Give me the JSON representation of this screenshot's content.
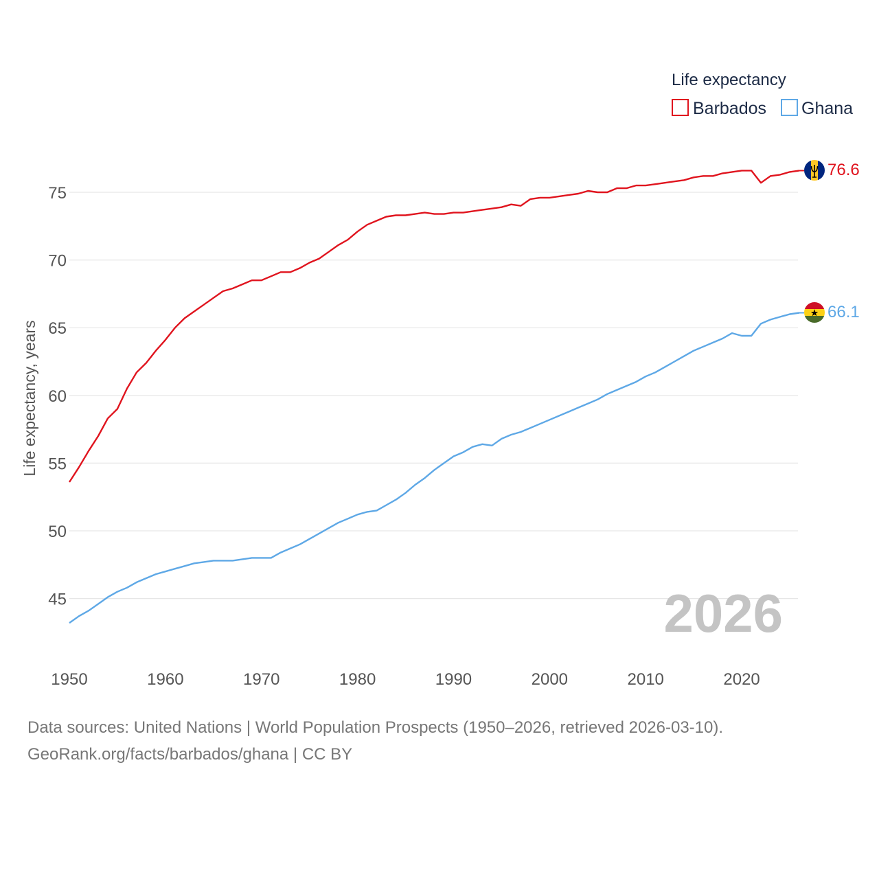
{
  "chart_data": {
    "type": "line",
    "title": "Life expectancy",
    "xlabel": "",
    "ylabel": "Life expectancy, years",
    "xlim": [
      1950,
      2026
    ],
    "ylim": [
      42,
      79
    ],
    "x_ticks": [
      1950,
      1960,
      1970,
      1980,
      1990,
      2000,
      2010,
      2020
    ],
    "y_ticks": [
      45,
      50,
      55,
      60,
      65,
      70,
      75
    ],
    "grid": true,
    "legend_position": "top-right",
    "current_year": "2026",
    "x": [
      1950,
      1951,
      1952,
      1953,
      1954,
      1955,
      1956,
      1957,
      1958,
      1959,
      1960,
      1961,
      1962,
      1963,
      1964,
      1965,
      1966,
      1967,
      1968,
      1969,
      1970,
      1971,
      1972,
      1973,
      1974,
      1975,
      1976,
      1977,
      1978,
      1979,
      1980,
      1981,
      1982,
      1983,
      1984,
      1985,
      1986,
      1987,
      1988,
      1989,
      1990,
      1991,
      1992,
      1993,
      1994,
      1995,
      1996,
      1997,
      1998,
      1999,
      2000,
      2001,
      2002,
      2003,
      2004,
      2005,
      2006,
      2007,
      2008,
      2009,
      2010,
      2011,
      2012,
      2013,
      2014,
      2015,
      2016,
      2017,
      2018,
      2019,
      2020,
      2021,
      2022,
      2023,
      2024,
      2025,
      2026
    ],
    "series": [
      {
        "name": "Barbados",
        "color": "#e0141e",
        "end_label": "76.6",
        "flag": "barbados-flag",
        "values": [
          53.6,
          54.7,
          55.9,
          57.0,
          58.3,
          59.0,
          60.5,
          61.7,
          62.4,
          63.3,
          64.1,
          65.0,
          65.7,
          66.2,
          66.7,
          67.2,
          67.7,
          67.9,
          68.2,
          68.5,
          68.5,
          68.8,
          69.1,
          69.1,
          69.4,
          69.8,
          70.1,
          70.6,
          71.1,
          71.5,
          72.1,
          72.6,
          72.9,
          73.2,
          73.3,
          73.3,
          73.4,
          73.5,
          73.4,
          73.4,
          73.5,
          73.5,
          73.6,
          73.7,
          73.8,
          73.9,
          74.1,
          74.0,
          74.5,
          74.6,
          74.6,
          74.7,
          74.8,
          74.9,
          75.1,
          75.0,
          75.0,
          75.3,
          75.3,
          75.5,
          75.5,
          75.6,
          75.7,
          75.8,
          75.9,
          76.1,
          76.2,
          76.2,
          76.4,
          76.5,
          76.6,
          76.6,
          75.7,
          76.2,
          76.3,
          76.5,
          76.6
        ]
      },
      {
        "name": "Ghana",
        "color": "#5ea8e6",
        "end_label": "66.1",
        "flag": "ghana-flag",
        "values": [
          43.2,
          43.7,
          44.1,
          44.6,
          45.1,
          45.5,
          45.8,
          46.2,
          46.5,
          46.8,
          47.0,
          47.2,
          47.4,
          47.6,
          47.7,
          47.8,
          47.8,
          47.8,
          47.9,
          48.0,
          48.0,
          48.0,
          48.4,
          48.7,
          49.0,
          49.4,
          49.8,
          50.2,
          50.6,
          50.9,
          51.2,
          51.4,
          51.5,
          51.9,
          52.3,
          52.8,
          53.4,
          53.9,
          54.5,
          55.0,
          55.5,
          55.8,
          56.2,
          56.4,
          56.3,
          56.8,
          57.1,
          57.3,
          57.6,
          57.9,
          58.2,
          58.5,
          58.8,
          59.1,
          59.4,
          59.7,
          60.1,
          60.4,
          60.7,
          61.0,
          61.4,
          61.7,
          62.1,
          62.5,
          62.9,
          63.3,
          63.6,
          63.9,
          64.2,
          64.6,
          64.4,
          64.4,
          65.3,
          65.6,
          65.8,
          66.0,
          66.1
        ]
      }
    ]
  },
  "footer": {
    "source": "Data sources: United Nations | World Population Prospects (1950–2026, retrieved 2026-03-10).",
    "credit": "GeoRank.org/facts/barbados/ghana | CC BY"
  }
}
